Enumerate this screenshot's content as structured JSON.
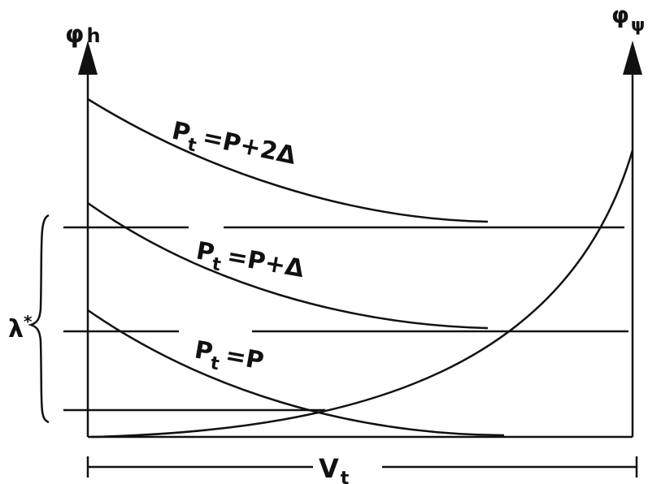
{
  "axes": {
    "left": {
      "main": "φ",
      "sub": "h"
    },
    "right": {
      "main": "φ",
      "sub": "ψ"
    },
    "bottom": {
      "main": "V",
      "sub": "t"
    }
  },
  "curves": [
    {
      "main": "P",
      "sub": "t",
      "rest": "=P+2Δ"
    },
    {
      "main": "P",
      "sub": "t",
      "rest": "=P+Δ"
    },
    {
      "main": "P",
      "sub": "t",
      "rest": "=P"
    }
  ],
  "bracket": {
    "main": "λ",
    "sup": "*"
  }
}
